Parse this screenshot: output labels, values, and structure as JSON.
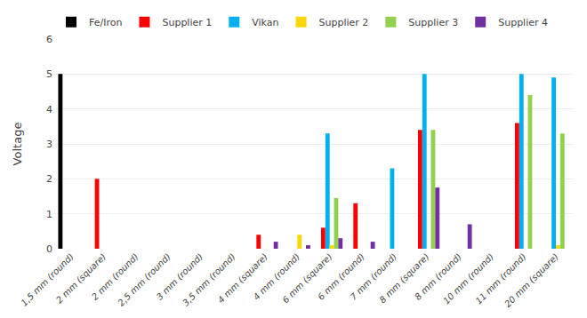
{
  "chart_data": {
    "type": "bar",
    "categories": [
      "1,5 mm (round)",
      "2 mm (square)",
      "2 mm (round)",
      "2,5 mm (round)",
      "3 mm (round)",
      "3,5 mm (round)",
      "4 mm (square)",
      "4 mm (round)",
      "6 mm (square)",
      "6 mm (round)",
      "7 mm (round)",
      "8 mm (square)",
      "8 mm (round)",
      "10 mm (round)",
      "11 mm (round)",
      "20 mm (square)"
    ],
    "series": [
      {
        "name": "Fe/Iron",
        "color": "#000000",
        "values": [
          5.0,
          0,
          0,
          0,
          0,
          0,
          0,
          0,
          0,
          0,
          0,
          0,
          0,
          0,
          0,
          0
        ]
      },
      {
        "name": "Supplier 1",
        "color": "#FF0000",
        "values": [
          0,
          2.0,
          0,
          0,
          0,
          0,
          0.4,
          0,
          0.6,
          1.3,
          0,
          3.4,
          0,
          0,
          3.6,
          0
        ]
      },
      {
        "name": "Vikan",
        "color": "#00B0F0",
        "values": [
          0,
          0,
          0,
          0,
          0,
          0,
          0,
          0,
          3.3,
          0,
          2.3,
          5.0,
          0,
          0,
          5.0,
          4.9
        ]
      },
      {
        "name": "Supplier 2",
        "color": "#FFD700",
        "values": [
          0,
          0,
          0,
          0,
          0,
          0,
          0,
          0.4,
          0.1,
          0,
          0,
          0,
          0,
          0,
          0,
          0.1
        ]
      },
      {
        "name": "Supplier 3",
        "color": "#92D050",
        "values": [
          0,
          0,
          0,
          0,
          0,
          0,
          0,
          0,
          1.45,
          0,
          0,
          3.4,
          0,
          0,
          4.4,
          3.3
        ]
      },
      {
        "name": "Supplier 4",
        "color": "#7030A0",
        "values": [
          0,
          0,
          0,
          0,
          0,
          0,
          0.2,
          0.1,
          0.3,
          0.2,
          0,
          1.75,
          0.7,
          0,
          0,
          0
        ]
      }
    ],
    "y_label": "Voltage",
    "ylim": [
      0,
      6
    ],
    "yticks": [
      0,
      1,
      2,
      3,
      4,
      5,
      6
    ],
    "grid": true,
    "legend": "top"
  }
}
